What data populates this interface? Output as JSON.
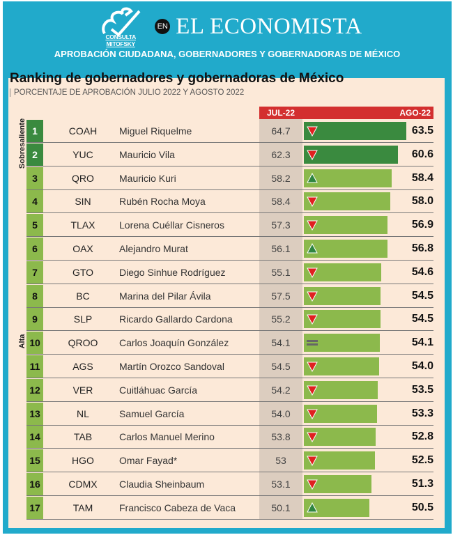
{
  "header": {
    "logo_text": "CONSULTA MITOFSKY",
    "en_badge": "EN",
    "publication": "EL ECONOMISTA",
    "subtitle": "APROBACIÓN CIUDADANA, GOBERNADORES Y GOBERNADORAS DE MÉXICO"
  },
  "title": "Ranking de gobernadores y gobernadoras de México",
  "subtitle": "PORCENTAJE DE APROBACIÓN JULIO 2022 Y AGOSTO 2022",
  "columns": {
    "jul": "JUL-22",
    "ago": "AGO-22"
  },
  "categories": {
    "top": "Sobresaliente",
    "high": "Alta"
  },
  "colors": {
    "dark_green": "#3a8a3f",
    "light_green": "#8cb94c",
    "red": "#d32f2f",
    "teal": "#21aacb"
  },
  "chart_data": {
    "type": "bar",
    "title": "Ranking de gobernadores y gobernadoras de México",
    "series": [
      {
        "name": "JUL-22"
      },
      {
        "name": "AGO-22"
      }
    ],
    "rows": [
      {
        "rank": "1",
        "state": "COAH",
        "name": "Miguel Riquelme",
        "jul": "64.7",
        "ago": "63.5",
        "trend": "down",
        "tier": "top"
      },
      {
        "rank": "2",
        "state": "YUC",
        "name": "Mauricio Vila",
        "jul": "62.3",
        "ago": "60.6",
        "trend": "down",
        "tier": "top"
      },
      {
        "rank": "3",
        "state": "QRO",
        "name": "Mauricio Kuri",
        "jul": "58.2",
        "ago": "58.4",
        "trend": "up",
        "tier": "high"
      },
      {
        "rank": "4",
        "state": "SIN",
        "name": "Rubén Rocha Moya",
        "jul": "58.4",
        "ago": "58.0",
        "trend": "down",
        "tier": "high"
      },
      {
        "rank": "5",
        "state": "TLAX",
        "name": "Lorena Cuéllar Cisneros",
        "jul": "57.3",
        "ago": "56.9",
        "trend": "down",
        "tier": "high"
      },
      {
        "rank": "6",
        "state": "OAX",
        "name": "Alejandro Murat",
        "jul": "56.1",
        "ago": "56.8",
        "trend": "up",
        "tier": "high"
      },
      {
        "rank": "7",
        "state": "GTO",
        "name": "Diego Sinhue Rodríguez",
        "jul": "55.1",
        "ago": "54.6",
        "trend": "down",
        "tier": "high"
      },
      {
        "rank": "8",
        "state": "BC",
        "name": "Marina del Pilar Ávila",
        "jul": "57.5",
        "ago": "54.5",
        "trend": "down",
        "tier": "high"
      },
      {
        "rank": "9",
        "state": "SLP",
        "name": "Ricardo Gallardo Cardona",
        "jul": "55.2",
        "ago": "54.5",
        "trend": "down",
        "tier": "high"
      },
      {
        "rank": "10",
        "state": "QROO",
        "name": "Carlos Joaquín González",
        "jul": "54.1",
        "ago": "54.1",
        "trend": "equal",
        "tier": "high"
      },
      {
        "rank": "11",
        "state": "AGS",
        "name": "Martín Orozco Sandoval",
        "jul": "54.5",
        "ago": "54.0",
        "trend": "down",
        "tier": "high"
      },
      {
        "rank": "12",
        "state": "VER",
        "name": "Cuitláhuac García",
        "jul": "54.2",
        "ago": "53.5",
        "trend": "down",
        "tier": "high"
      },
      {
        "rank": "13",
        "state": "NL",
        "name": "Samuel García",
        "jul": "54.0",
        "ago": "53.3",
        "trend": "down",
        "tier": "high"
      },
      {
        "rank": "14",
        "state": "TAB",
        "name": "Carlos Manuel Merino",
        "jul": "53.8",
        "ago": "52.8",
        "trend": "down",
        "tier": "high"
      },
      {
        "rank": "15",
        "state": "HGO",
        "name": "Omar Fayad*",
        "jul": "53",
        "ago": "52.5",
        "trend": "down",
        "tier": "high"
      },
      {
        "rank": "16",
        "state": "CDMX",
        "name": "Claudia Sheinbaum",
        "jul": "53.1",
        "ago": "51.3",
        "trend": "down",
        "tier": "high"
      },
      {
        "rank": "17",
        "state": "TAM",
        "name": "Francisco Cabeza de Vaca",
        "jul": "50.1",
        "ago": "50.5",
        "trend": "up",
        "tier": "high"
      }
    ]
  }
}
